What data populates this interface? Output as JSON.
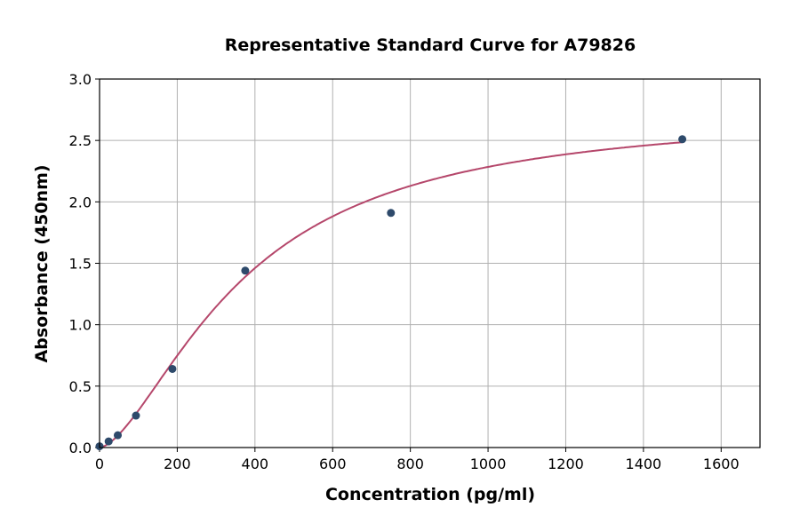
{
  "chart_data": {
    "type": "scatter",
    "title": "Representative Standard Curve for A79826",
    "xlabel": "Concentration (pg/ml)",
    "ylabel": "Absorbance (450nm)",
    "xlim": [
      0,
      1700
    ],
    "ylim": [
      0,
      3.0
    ],
    "xticks": [
      0,
      200,
      400,
      600,
      800,
      1000,
      1200,
      1400,
      1600
    ],
    "yticks": [
      "0.0",
      "0.5",
      "1.0",
      "1.5",
      "2.0",
      "2.5",
      "3.0"
    ],
    "grid": true,
    "points": [
      {
        "x": 0,
        "y": 0.01
      },
      {
        "x": 23.4,
        "y": 0.05
      },
      {
        "x": 46.9,
        "y": 0.1
      },
      {
        "x": 93.75,
        "y": 0.26
      },
      {
        "x": 187.5,
        "y": 0.64
      },
      {
        "x": 375,
        "y": 1.44
      },
      {
        "x": 750,
        "y": 1.91
      },
      {
        "x": 1500,
        "y": 2.51
      }
    ],
    "curve": "fitted standard curve (4-parameter)",
    "colors": {
      "points": "#2e4a6b",
      "curve": "#b5476b",
      "grid": "#b0b0b0"
    }
  }
}
